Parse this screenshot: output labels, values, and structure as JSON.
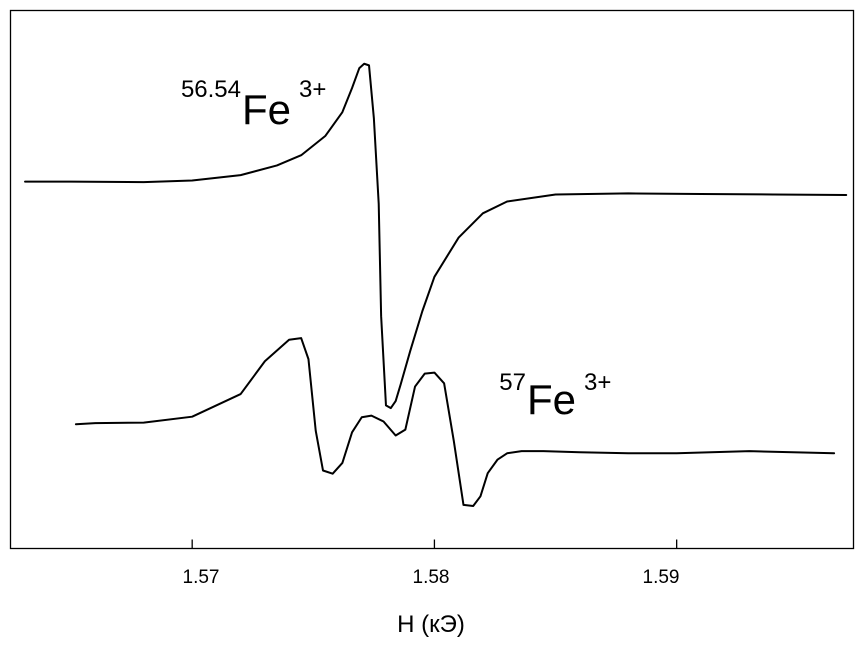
{
  "chart_data": {
    "type": "line",
    "xlabel": "H (кЭ)",
    "ylabel": "",
    "xlim": [
      1.5625,
      1.5973
    ],
    "ylim": [
      0,
      1
    ],
    "xticks": [
      1.57,
      1.58,
      1.59
    ],
    "xtick_labels": [
      "1.57",
      "1.58",
      "1.59"
    ],
    "yticks": [],
    "grid": false,
    "legend": "none",
    "line_color": "#000000",
    "series": [
      {
        "annotation": {
          "isotope": "56.54",
          "element": "Fe",
          "charge": "3+"
        },
        "x": [
          1.5631,
          1.565,
          1.568,
          1.57,
          1.572,
          1.5735,
          1.5745,
          1.5755,
          1.5762,
          1.5766,
          1.5769,
          1.5771,
          1.5773,
          1.5775,
          1.5777,
          1.5778,
          1.578,
          1.5782,
          1.5784,
          1.5786,
          1.579,
          1.5795,
          1.58,
          1.581,
          1.582,
          1.583,
          1.585,
          1.588,
          1.591,
          1.594,
          1.597
        ],
        "y": [
          0.682,
          0.682,
          0.681,
          0.684,
          0.694,
          0.712,
          0.731,
          0.767,
          0.811,
          0.856,
          0.893,
          0.901,
          0.898,
          0.8,
          0.641,
          0.432,
          0.266,
          0.261,
          0.274,
          0.304,
          0.367,
          0.441,
          0.505,
          0.578,
          0.623,
          0.645,
          0.658,
          0.66,
          0.659,
          0.658,
          0.657
        ]
      },
      {
        "annotation": {
          "isotope": "57",
          "element": "Fe",
          "charge": "3+"
        },
        "x": [
          1.5652,
          1.566,
          1.568,
          1.57,
          1.572,
          1.573,
          1.574,
          1.5745,
          1.5748,
          1.5751,
          1.5754,
          1.5758,
          1.5762,
          1.5766,
          1.577,
          1.5774,
          1.5779,
          1.5784,
          1.5788,
          1.5792,
          1.5796,
          1.58,
          1.5804,
          1.5808,
          1.5812,
          1.5816,
          1.5819,
          1.5822,
          1.5826,
          1.583,
          1.5836,
          1.5845,
          1.586,
          1.588,
          1.59,
          1.593,
          1.5965
        ],
        "y": [
          0.231,
          0.233,
          0.234,
          0.245,
          0.287,
          0.348,
          0.388,
          0.391,
          0.352,
          0.219,
          0.145,
          0.139,
          0.159,
          0.216,
          0.244,
          0.247,
          0.236,
          0.21,
          0.221,
          0.301,
          0.325,
          0.327,
          0.307,
          0.2,
          0.081,
          0.079,
          0.097,
          0.14,
          0.165,
          0.177,
          0.181,
          0.181,
          0.179,
          0.177,
          0.177,
          0.181,
          0.177
        ]
      }
    ]
  }
}
